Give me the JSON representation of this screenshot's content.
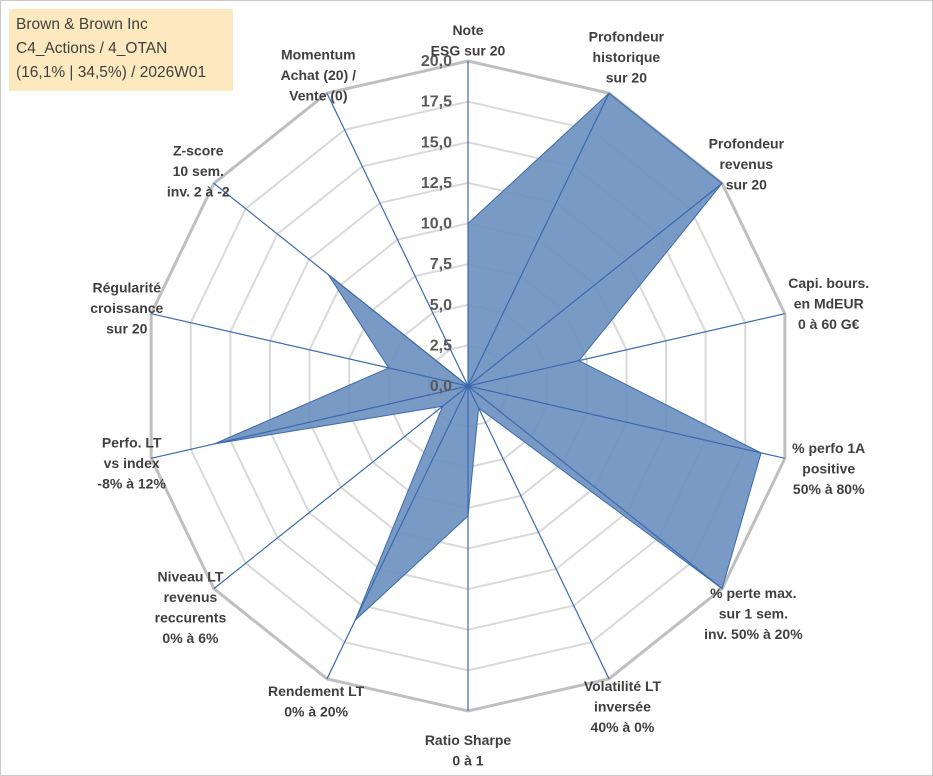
{
  "info_box": {
    "line1": "Brown & Brown Inc",
    "line2": "C4_Actions / 4_OTAN",
    "line3": "(16,1% | 34,5%) / 2026W01"
  },
  "colors": {
    "fill": "#6a8fbf",
    "stroke": "#3b6ab0",
    "spoke": "#3b6ab0",
    "grid_outer": "#bfbfbf",
    "grid_inner": "#d9d9d9",
    "background": "#ffffff",
    "info_bg": "#fde9bf"
  },
  "chart_data": {
    "type": "radar",
    "title": "",
    "rmin": 0,
    "rmax": 20,
    "tick_step": 2.5,
    "tick_labels": [
      "0,0",
      "2,5",
      "5,0",
      "7,5",
      "10,0",
      "12,5",
      "15,0",
      "17,5",
      "20,0"
    ],
    "axes": [
      {
        "label": [
          "Note",
          "ESG sur 20"
        ]
      },
      {
        "label": [
          "Profondeur",
          "historique",
          "sur 20"
        ]
      },
      {
        "label": [
          "Profondeur",
          "revenus",
          "sur 20"
        ]
      },
      {
        "label": [
          "Capi. bours.",
          "en MdEUR",
          "0 à 60 G€"
        ]
      },
      {
        "label": [
          "% perfo 1A",
          "positive",
          "50% à 80%"
        ]
      },
      {
        "label": [
          "% perte max.",
          "sur 1 sem.",
          "inv. 50% à 20%"
        ]
      },
      {
        "label": [
          "Volatilité LT",
          "inversée",
          "40% à 0%"
        ]
      },
      {
        "label": [
          "Ratio Sharpe",
          "0 à 1"
        ]
      },
      {
        "label": [
          "Rendement LT",
          "0% à 20%"
        ]
      },
      {
        "label": [
          "Niveau LT",
          "revenus",
          "reccurents",
          "0% à 6%"
        ]
      },
      {
        "label": [
          "Perfo. LT",
          "vs index",
          "-8% à 12%"
        ]
      },
      {
        "label": [
          "Régularité",
          "croissance",
          "sur 20"
        ]
      },
      {
        "label": [
          "Z-score",
          "10 sem.",
          "inv. 2 à -2"
        ]
      },
      {
        "label": [
          "Momentum",
          "Achat (20) /",
          "Vente (0)"
        ]
      }
    ],
    "series": [
      {
        "name": "Brown & Brown Inc",
        "values": [
          10.0,
          20.0,
          20.0,
          7.0,
          18.5,
          20.0,
          1.5,
          8.0,
          16.0,
          2.0,
          16.0,
          5.0,
          11.0,
          0.0
        ]
      }
    ]
  }
}
